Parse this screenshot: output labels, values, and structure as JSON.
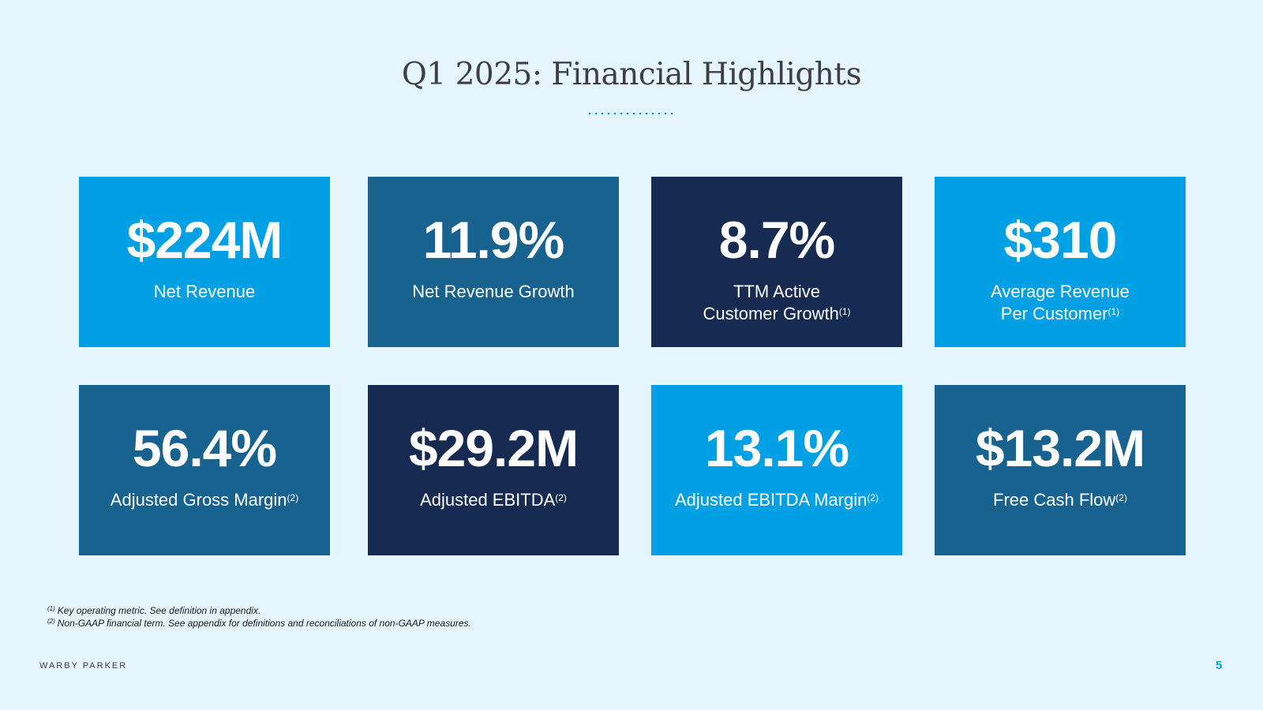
{
  "title": "Q1 2025: Financial Highlights",
  "colors": {
    "bright_blue": "#019fe3",
    "mid_blue": "#18628f",
    "navy": "#172b52",
    "background": "#e4f5fd"
  },
  "cards": [
    {
      "value": "$224M",
      "label_line1": "Net Revenue",
      "label_line2": "",
      "footnote": ""
    },
    {
      "value": "11.9%",
      "label_line1": "Net Revenue Growth",
      "label_line2": "",
      "footnote": ""
    },
    {
      "value": "8.7%",
      "label_line1": "TTM Active",
      "label_line2": "Customer Growth",
      "footnote": "(1)"
    },
    {
      "value": "$310",
      "label_line1": "Average Revenue",
      "label_line2": "Per Customer",
      "footnote": "(1)"
    },
    {
      "value": "56.4%",
      "label_line1": "Adjusted Gross Margin",
      "label_line2": "",
      "footnote": "(2)"
    },
    {
      "value": "$29.2M",
      "label_line1": "Adjusted EBITDA",
      "label_line2": "",
      "footnote": "(2)"
    },
    {
      "value": "13.1%",
      "label_line1": "Adjusted EBITDA Margin",
      "label_line2": "",
      "footnote": "(2)"
    },
    {
      "value": "$13.2M",
      "label_line1": "Free Cash Flow",
      "label_line2": "",
      "footnote": "(2)"
    }
  ],
  "footnotes": [
    {
      "mark": "(1)",
      "text": "Key operating metric. See definition in appendix."
    },
    {
      "mark": "(2)",
      "text": "Non-GAAP financial term. See appendix for definitions and reconciliations of non-GAAP measures."
    }
  ],
  "brand": "WARBY PARKER",
  "page_number": "5"
}
